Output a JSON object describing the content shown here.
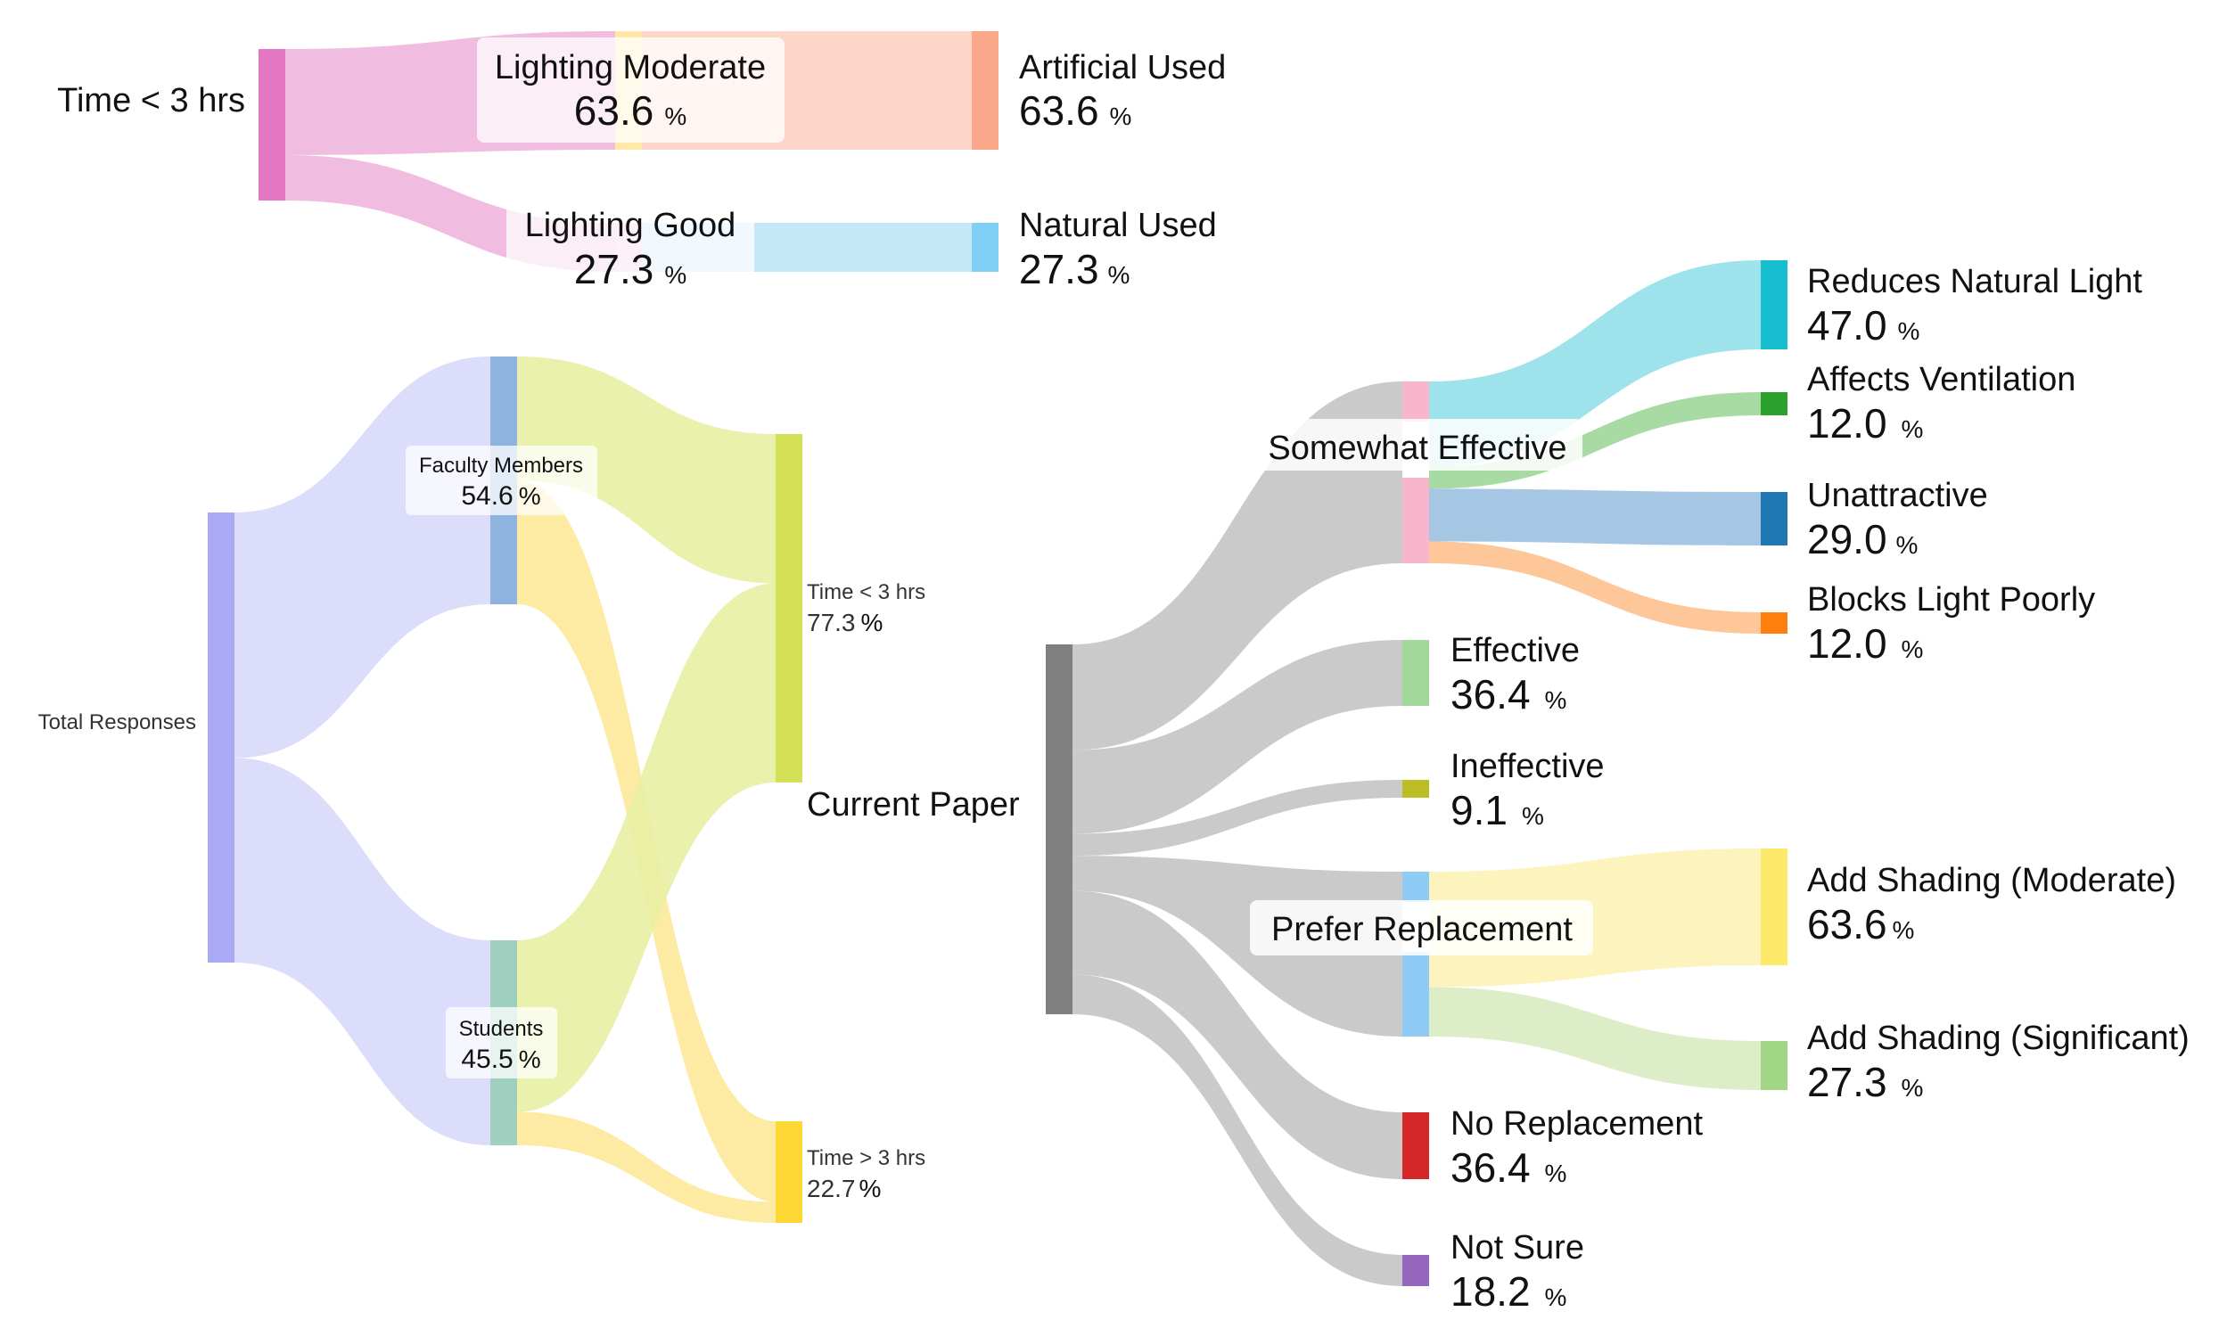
{
  "diagrams": {
    "lighting": {
      "nodes": {
        "time_lt3": {
          "label": "Time < 3 hrs",
          "color": "#e377c2"
        },
        "lighting_moderate": {
          "label": "Lighting Moderate",
          "value": "63.6",
          "unit": "%",
          "color": "#ffe9a8"
        },
        "lighting_good": {
          "label": "Lighting Good",
          "value": "27.3",
          "unit": "%",
          "color": "#f4c6e4"
        },
        "artificial_used": {
          "label": "Artificial Used",
          "value": "63.6",
          "unit": "%",
          "color": "#fca98b"
        },
        "natural_used": {
          "label": "Natural Used",
          "value": "27.3",
          "unit": "%",
          "color": "#7fd0f4"
        }
      },
      "links": [
        {
          "from": "time_lt3",
          "to": "lighting_moderate",
          "value": 63.6,
          "color": "#eeb5dd"
        },
        {
          "from": "time_lt3",
          "to": "lighting_good",
          "value": 27.3,
          "color": "#eeb5dd"
        },
        {
          "from": "lighting_moderate",
          "to": "artificial_used",
          "value": 63.6,
          "color": "#fdd2c4"
        },
        {
          "from": "lighting_good",
          "to": "natural_used",
          "value": 27.3,
          "color": "#bfe6f8"
        }
      ]
    },
    "respondents": {
      "nodes": {
        "total": {
          "label": "Total Responses",
          "color": "#a9a9f5"
        },
        "faculty": {
          "label": "Faculty Members",
          "value": "54.6",
          "unit": "%",
          "color": "#8eb3df"
        },
        "students": {
          "label": "Students",
          "value": "45.5",
          "unit": "%",
          "color": "#9fcfbf"
        },
        "time_lt3": {
          "label": "Time < 3 hrs",
          "value": "77.3",
          "unit": "%",
          "color": "#d4e157"
        },
        "time_gt3": {
          "label": "Time > 3 hrs",
          "value": "22.7",
          "unit": "%",
          "color": "#fdd835"
        }
      },
      "links": [
        {
          "from": "total",
          "to": "faculty",
          "value": 54.6,
          "color": "#d8d8fb"
        },
        {
          "from": "total",
          "to": "students",
          "value": 45.5,
          "color": "#d8d8fb"
        },
        {
          "from": "faculty",
          "to": "time_lt3",
          "value": 27,
          "color": "#e8f0a4"
        },
        {
          "from": "faculty",
          "to": "time_gt3",
          "value": 27,
          "color": "#fde99a"
        },
        {
          "from": "students",
          "to": "time_lt3",
          "value": 36,
          "color": "#e8f0a4"
        },
        {
          "from": "students",
          "to": "time_gt3",
          "value": 7,
          "color": "#fde99a"
        }
      ]
    },
    "paper": {
      "nodes": {
        "current_paper": {
          "label": "Current Paper",
          "color": "#808080"
        },
        "somewhat_effective": {
          "label": "Somewhat Effective",
          "color": "#f8b6cc"
        },
        "effective": {
          "label": "Effective",
          "value": "36.4",
          "unit": "%",
          "color": "#a1d99b"
        },
        "ineffective": {
          "label": "Ineffective",
          "value": "9.1",
          "unit": "%",
          "color": "#bcbd22"
        },
        "prefer_replacement": {
          "label": "Prefer Replacement",
          "color": "#8ecbf5"
        },
        "no_replacement": {
          "label": "No Replacement",
          "value": "36.4",
          "unit": "%",
          "color": "#d62728"
        },
        "not_sure": {
          "label": "Not Sure",
          "value": "18.2",
          "unit": "%",
          "color": "#9467bd"
        },
        "reduces_natural_light": {
          "label": "Reduces Natural Light",
          "value": "47.0",
          "unit": "%",
          "color": "#17becf"
        },
        "affects_ventilation": {
          "label": "Affects Ventilation",
          "value": "12.0",
          "unit": "%",
          "color": "#2ca02c"
        },
        "unattractive": {
          "label": "Unattractive",
          "value": "29.0",
          "unit": "%",
          "color": "#1f77b4"
        },
        "blocks_light_poorly": {
          "label": "Blocks Light Poorly",
          "value": "12.0",
          "unit": "%",
          "color": "#ff7f0e"
        },
        "add_shading_moderate": {
          "label": "Add Shading (Moderate)",
          "value": "63.6",
          "unit": "%",
          "color": "#fce96a"
        },
        "add_shading_significant": {
          "label": "Add Shading (Significant)",
          "value": "27.3",
          "unit": "%",
          "color": "#a1d685"
        }
      },
      "links": [
        {
          "from": "current_paper",
          "to": "somewhat_effective",
          "value": 24,
          "color": "#c4c4c4"
        },
        {
          "from": "current_paper",
          "to": "effective",
          "value": 19,
          "color": "#c4c4c4"
        },
        {
          "from": "current_paper",
          "to": "ineffective",
          "value": 5,
          "color": "#c4c4c4"
        },
        {
          "from": "current_paper",
          "to": "prefer_replacement",
          "value": 8,
          "color": "#c4c4c4"
        },
        {
          "from": "current_paper",
          "to": "no_replacement",
          "value": 19,
          "color": "#c4c4c4"
        },
        {
          "from": "current_paper",
          "to": "not_sure",
          "value": 9,
          "color": "#c4c4c4"
        },
        {
          "from": "somewhat_effective",
          "to": "reduces_natural_light",
          "value": 47.0,
          "color": "#94e0ea"
        },
        {
          "from": "somewhat_effective",
          "to": "affects_ventilation",
          "value": 12.0,
          "color": "#9ed79a"
        },
        {
          "from": "somewhat_effective",
          "to": "unattractive",
          "value": 29.0,
          "color": "#9cc1e0"
        },
        {
          "from": "somewhat_effective",
          "to": "blocks_light_poorly",
          "value": 12.0,
          "color": "#fdc18f"
        },
        {
          "from": "prefer_replacement",
          "to": "add_shading_moderate",
          "value": 63.6,
          "color": "#fdf3b6"
        },
        {
          "from": "prefer_replacement",
          "to": "add_shading_significant",
          "value": 27.3,
          "color": "#d8ebc2"
        }
      ]
    }
  }
}
